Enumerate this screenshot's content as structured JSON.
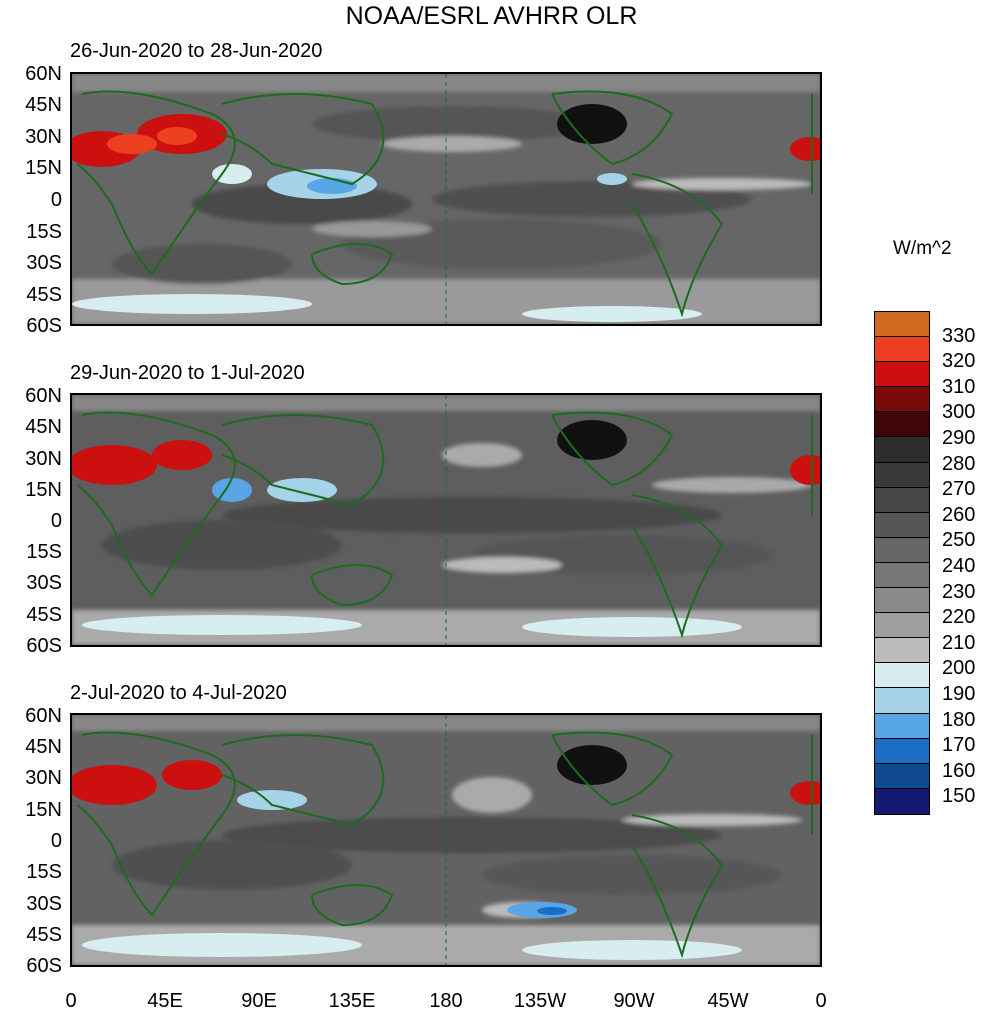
{
  "title": "NOAA/ESRL AVHRR OLR",
  "panels": [
    {
      "label": "26-Jun-2020 to 28-Jun-2020"
    },
    {
      "label": "29-Jun-2020 to 1-Jul-2020"
    },
    {
      "label": "2-Jul-2020 to 4-Jul-2020"
    }
  ],
  "lat_labels": [
    "60N",
    "45N",
    "30N",
    "15N",
    "0",
    "15S",
    "30S",
    "45S",
    "60S"
  ],
  "lon_labels": [
    "0",
    "45E",
    "90E",
    "135E",
    "180",
    "135W",
    "90W",
    "45W",
    "0"
  ],
  "colorbar": {
    "units": "W/m^2",
    "levels": [
      "330",
      "320",
      "310",
      "300",
      "290",
      "280",
      "270",
      "260",
      "250",
      "240",
      "230",
      "220",
      "210",
      "200",
      "190",
      "180",
      "170",
      "160",
      "150"
    ],
    "colors": [
      "#cf6a20",
      "#ee4020",
      "#cc1010",
      "#7a0a0a",
      "#3e0606",
      "#2d2d2d",
      "#393939",
      "#474747",
      "#565656",
      "#666666",
      "#777777",
      "#8a8a8a",
      "#9e9e9e",
      "#bcbcbc",
      "#d7edf0",
      "#a7d3e8",
      "#58a6e6",
      "#1a6ec6",
      "#0f4b8e",
      "#141a74"
    ]
  }
}
